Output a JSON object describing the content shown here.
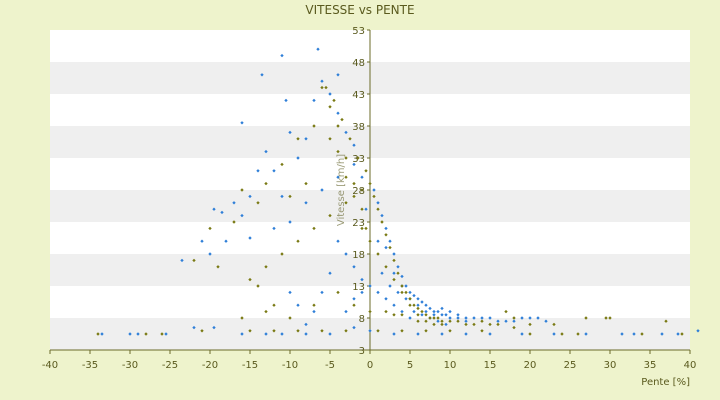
{
  "chart_data": {
    "type": "scatter",
    "title": "VITESSE vs PENTE",
    "xlabel": "Pente [%]",
    "ylabel": "Vitesse [km/h]",
    "xlim": [
      -40,
      40
    ],
    "ylim": [
      3,
      53
    ],
    "x_ticks": [
      "-40",
      "-35",
      "-30",
      "-25",
      "-20",
      "-15",
      "-10",
      "-5",
      "0",
      "5",
      "10",
      "15",
      "20",
      "25",
      "30",
      "35",
      "40"
    ],
    "y_ticks": [
      "3",
      "8",
      "13",
      "18",
      "23",
      "28",
      "33",
      "38",
      "43",
      "48",
      "53"
    ],
    "grid": "horizontal bands",
    "legend": "none",
    "colors": {
      "background": "#eef3cc",
      "band": "#efefef",
      "series_a": "#2f7fd8",
      "series_b": "#7a7a14"
    },
    "series": [
      {
        "color": "#2f7fd8",
        "points": [
          [
            -33.5,
            5.5
          ],
          [
            -30,
            5.5
          ],
          [
            -29,
            5.5
          ],
          [
            -25.5,
            5.5
          ],
          [
            -22,
            6.5
          ],
          [
            -19.5,
            6.5
          ],
          [
            -16,
            5.5
          ],
          [
            -13,
            5.5
          ],
          [
            -11,
            5.5
          ],
          [
            -8,
            5.5
          ],
          [
            -5,
            5.5
          ],
          [
            -2,
            6.5
          ],
          [
            0,
            6
          ],
          [
            3,
            5.5
          ],
          [
            6,
            5.5
          ],
          [
            9,
            5.5
          ],
          [
            12,
            5.5
          ],
          [
            15,
            5.5
          ],
          [
            19,
            5.5
          ],
          [
            23,
            5.5
          ],
          [
            27,
            5.5
          ],
          [
            31.5,
            5.5
          ],
          [
            33,
            5.5
          ],
          [
            36.5,
            5.5
          ],
          [
            38.5,
            5.5
          ],
          [
            41,
            6
          ],
          [
            -23.5,
            17
          ],
          [
            -21,
            20
          ],
          [
            -19.5,
            25
          ],
          [
            -18.5,
            24.5
          ],
          [
            -17,
            26
          ],
          [
            -16,
            24
          ],
          [
            -15,
            27
          ],
          [
            -14,
            31
          ],
          [
            -13,
            34
          ],
          [
            -12,
            31
          ],
          [
            -11,
            27
          ],
          [
            -10,
            37
          ],
          [
            -9,
            33
          ],
          [
            -8,
            36
          ],
          [
            -7,
            42
          ],
          [
            -6,
            45
          ],
          [
            -5,
            43
          ],
          [
            -4,
            40
          ],
          [
            -3,
            37
          ],
          [
            -2,
            35
          ],
          [
            -1,
            30
          ],
          [
            -0.5,
            25
          ],
          [
            -16,
            38.5
          ],
          [
            -13.5,
            46
          ],
          [
            -11,
            49
          ],
          [
            -10.5,
            42
          ],
          [
            -6.5,
            50
          ],
          [
            -4,
            46
          ],
          [
            -20,
            18
          ],
          [
            -18,
            20
          ],
          [
            -15,
            20.5
          ],
          [
            -12,
            22
          ],
          [
            -10,
            23
          ],
          [
            -8,
            26
          ],
          [
            -6,
            28
          ],
          [
            -4,
            30
          ],
          [
            -2,
            32
          ],
          [
            0.5,
            28
          ],
          [
            1,
            26
          ],
          [
            1.5,
            24
          ],
          [
            2,
            22
          ],
          [
            2.5,
            20
          ],
          [
            3,
            18
          ],
          [
            3.5,
            16
          ],
          [
            4,
            14.5
          ],
          [
            4.5,
            13
          ],
          [
            5,
            12
          ],
          [
            5.5,
            11.5
          ],
          [
            6,
            11
          ],
          [
            6.5,
            10.5
          ],
          [
            7,
            10
          ],
          [
            7.5,
            9.5
          ],
          [
            8,
            9
          ],
          [
            8.5,
            9
          ],
          [
            9,
            8.5
          ],
          [
            9.5,
            8.5
          ],
          [
            10,
            8
          ],
          [
            11,
            8
          ],
          [
            12,
            8
          ],
          [
            13,
            8
          ],
          [
            14,
            8
          ],
          [
            15,
            8
          ],
          [
            16,
            7.5
          ],
          [
            17,
            7.5
          ],
          [
            18,
            7.5
          ],
          [
            19,
            8
          ],
          [
            20,
            8
          ],
          [
            21,
            8
          ],
          [
            22,
            7.5
          ],
          [
            1,
            20
          ],
          [
            2,
            19
          ],
          [
            3,
            15
          ],
          [
            4,
            13
          ],
          [
            5,
            11
          ],
          [
            6,
            10
          ],
          [
            7,
            9
          ],
          [
            8,
            8.5
          ],
          [
            9,
            9.5
          ],
          [
            10,
            9
          ],
          [
            11,
            8.5
          ],
          [
            12,
            7.5
          ],
          [
            1.5,
            15
          ],
          [
            2.5,
            13
          ],
          [
            3.5,
            12
          ],
          [
            4.5,
            11
          ],
          [
            5.5,
            9
          ],
          [
            6.5,
            8.5
          ],
          [
            7.5,
            8
          ],
          [
            8.5,
            7.5
          ],
          [
            9.5,
            7
          ],
          [
            -3,
            18
          ],
          [
            -2,
            16
          ],
          [
            -1,
            14
          ],
          [
            -4,
            20
          ],
          [
            -5,
            15
          ],
          [
            -6,
            12
          ],
          [
            -7,
            9
          ],
          [
            -8,
            7
          ],
          [
            -9,
            10
          ],
          [
            -10,
            12
          ],
          [
            -3,
            9
          ],
          [
            -2,
            11
          ],
          [
            -1,
            12
          ],
          [
            0,
            13
          ],
          [
            1,
            12
          ],
          [
            2,
            11
          ],
          [
            3,
            10
          ],
          [
            4,
            9
          ],
          [
            5,
            8
          ]
        ]
      },
      {
        "color": "#7a7a14",
        "points": [
          [
            -34,
            5.5
          ],
          [
            -28,
            5.5
          ],
          [
            -26,
            5.5
          ],
          [
            -21,
            6
          ],
          [
            -15,
            6
          ],
          [
            -12,
            6
          ],
          [
            -9,
            6
          ],
          [
            -6,
            6
          ],
          [
            -3,
            6
          ],
          [
            1,
            6
          ],
          [
            4,
            6
          ],
          [
            7,
            6
          ],
          [
            10,
            6
          ],
          [
            14,
            6
          ],
          [
            18,
            6.5
          ],
          [
            20,
            5.5
          ],
          [
            24,
            5.5
          ],
          [
            26,
            5.5
          ],
          [
            30,
            8
          ],
          [
            34,
            5.5
          ],
          [
            37,
            7.5
          ],
          [
            39,
            5.5
          ],
          [
            -22,
            17
          ],
          [
            -20,
            22
          ],
          [
            -19,
            16
          ],
          [
            -17,
            23
          ],
          [
            -16,
            28
          ],
          [
            -14,
            26
          ],
          [
            -13,
            29
          ],
          [
            -11,
            32
          ],
          [
            -10,
            27
          ],
          [
            -9,
            36
          ],
          [
            -8,
            29
          ],
          [
            -7,
            38
          ],
          [
            -6,
            44
          ],
          [
            -5,
            41
          ],
          [
            -4,
            38
          ],
          [
            -3,
            33
          ],
          [
            -2,
            29
          ],
          [
            -1,
            25
          ],
          [
            -0.5,
            22
          ],
          [
            -5.5,
            44
          ],
          [
            -4.5,
            42
          ],
          [
            -3.5,
            39
          ],
          [
            -2.5,
            36
          ],
          [
            -1.5,
            33
          ],
          [
            -0.5,
            31
          ],
          [
            0,
            29
          ],
          [
            0.5,
            27
          ],
          [
            1,
            25
          ],
          [
            1.5,
            23
          ],
          [
            2,
            21
          ],
          [
            2.5,
            19
          ],
          [
            3,
            17
          ],
          [
            3.5,
            15
          ],
          [
            4,
            13
          ],
          [
            4.5,
            12
          ],
          [
            5,
            11
          ],
          [
            5.5,
            10
          ],
          [
            6,
            9.5
          ],
          [
            6.5,
            9
          ],
          [
            7,
            8.5
          ],
          [
            7.5,
            8
          ],
          [
            8,
            8
          ],
          [
            8.5,
            8
          ],
          [
            9,
            7.5
          ],
          [
            10,
            7.5
          ],
          [
            11,
            7.5
          ],
          [
            12,
            7
          ],
          [
            13,
            7
          ],
          [
            14,
            7.5
          ],
          [
            15,
            7
          ],
          [
            16,
            7
          ],
          [
            17,
            9
          ],
          [
            18,
            8
          ],
          [
            20,
            7
          ],
          [
            23,
            7
          ],
          [
            27,
            8
          ],
          [
            29.5,
            8
          ],
          [
            -12,
            10
          ],
          [
            -14,
            13
          ],
          [
            -15,
            14
          ],
          [
            -13,
            16
          ],
          [
            -11,
            18
          ],
          [
            -9,
            20
          ],
          [
            -7,
            22
          ],
          [
            -5,
            24
          ],
          [
            -3,
            26
          ],
          [
            -1,
            28
          ],
          [
            -16,
            8
          ],
          [
            -13,
            9
          ],
          [
            -10,
            8
          ],
          [
            -7,
            10
          ],
          [
            -4,
            12
          ],
          [
            -2,
            10
          ],
          [
            0,
            9
          ],
          [
            2,
            9
          ],
          [
            3,
            8.5
          ],
          [
            4,
            8.5
          ],
          [
            6,
            7.5
          ],
          [
            8,
            7
          ],
          [
            9,
            7
          ],
          [
            -5,
            36
          ],
          [
            -4,
            34
          ],
          [
            -3,
            30
          ],
          [
            -2,
            27
          ],
          [
            -1,
            22
          ],
          [
            0,
            20
          ],
          [
            1,
            18
          ],
          [
            2,
            16
          ],
          [
            3,
            14
          ],
          [
            4,
            12
          ],
          [
            5,
            10
          ],
          [
            6,
            8.5
          ],
          [
            7,
            7.5
          ]
        ]
      }
    ]
  }
}
